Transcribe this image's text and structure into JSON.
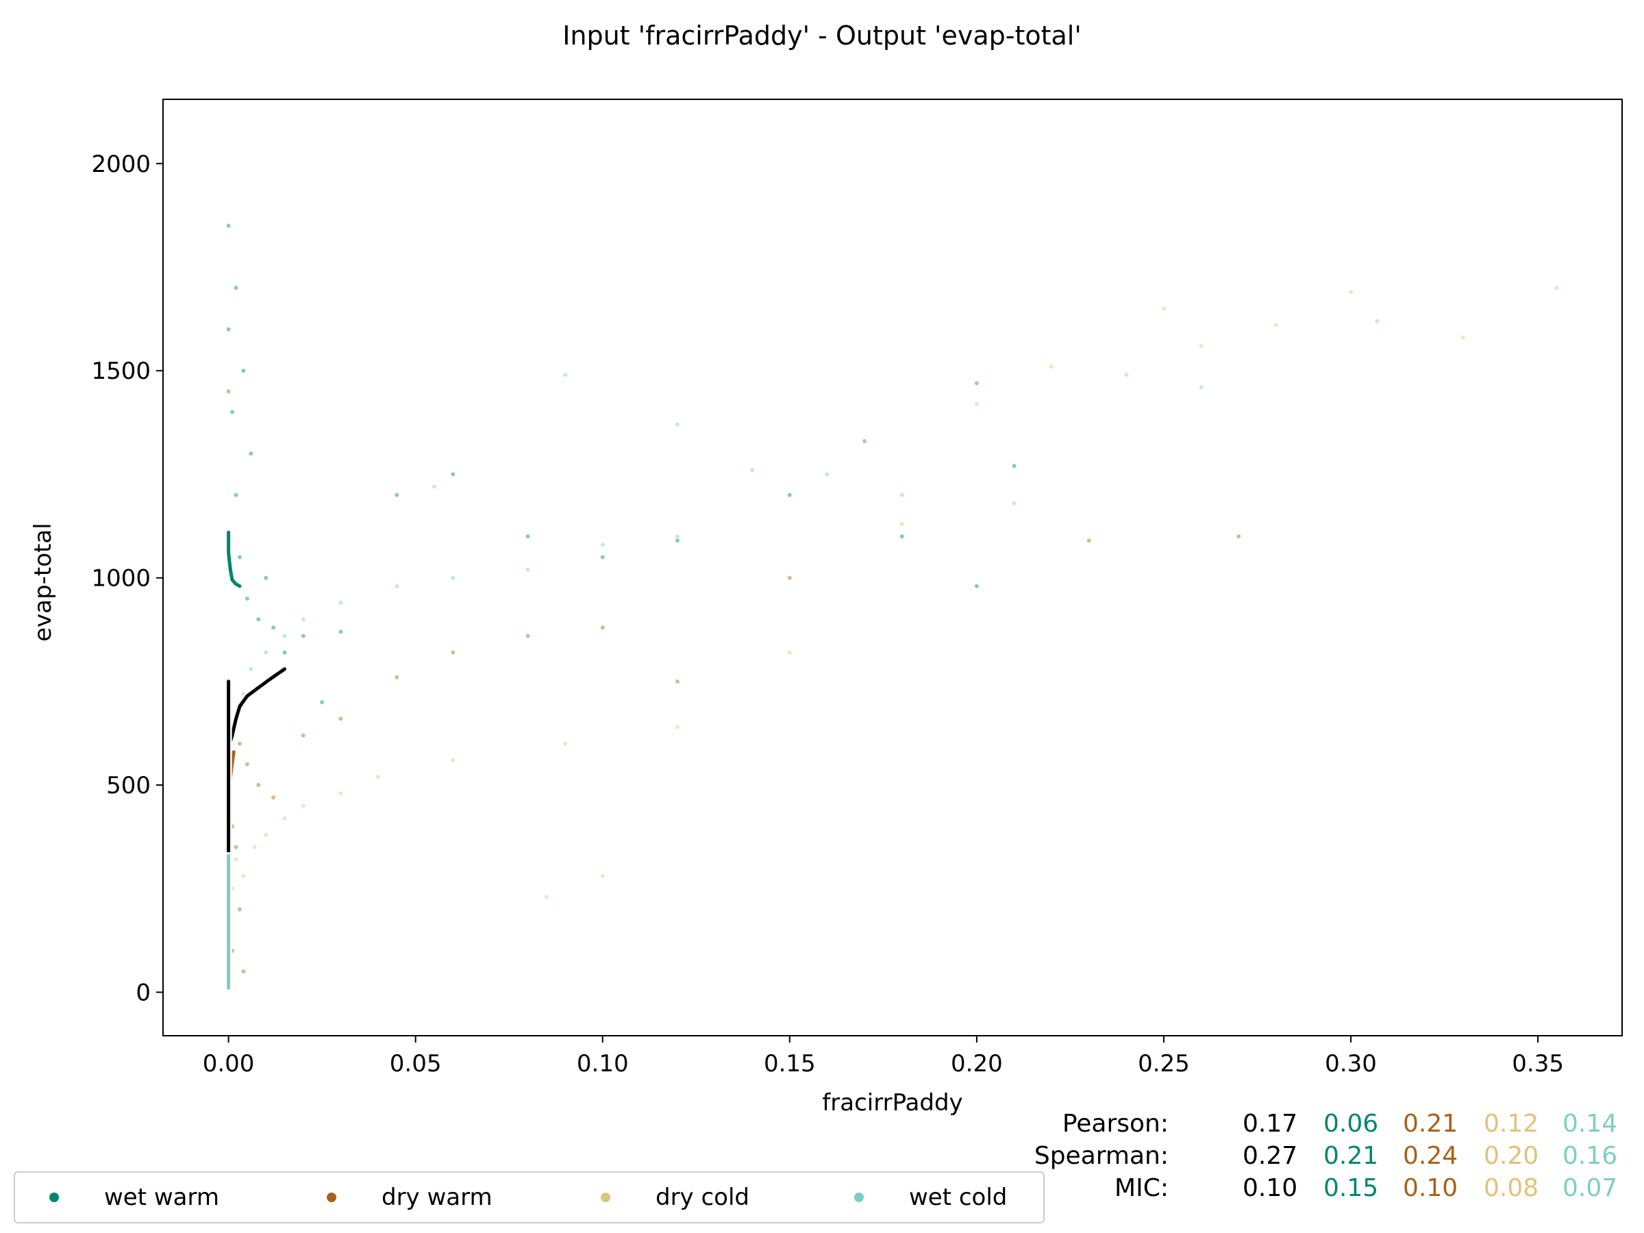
{
  "title": "Input 'fracirrPaddy' - Output 'evap-total'",
  "chart_data": {
    "type": "scatter",
    "title": "Input 'fracirrPaddy' - Output 'evap-total'",
    "xlabel": "fracirrPaddy",
    "ylabel": "evap-total",
    "xlim": [
      -0.0175,
      0.3725
    ],
    "ylim": [
      -105,
      2155
    ],
    "xticks": [
      0.0,
      0.05,
      0.1,
      0.15,
      0.2,
      0.25,
      0.3,
      0.35
    ],
    "xtick_labels": [
      "0.00",
      "0.05",
      "0.10",
      "0.15",
      "0.20",
      "0.25",
      "0.30",
      "0.35"
    ],
    "yticks": [
      0,
      500,
      1000,
      1500,
      2000
    ],
    "ytick_labels": [
      "0",
      "500",
      "1000",
      "1500",
      "2000"
    ],
    "grid": false,
    "legend_position": "bottom-left",
    "colors": {
      "all": "#000000",
      "wet warm": "#018571",
      "dry warm": "#a6611a",
      "dry cold": "#dfc27d",
      "wet cold": "#80cdc1"
    },
    "series": [
      {
        "name": "wet warm",
        "color": "#018571",
        "points": [
          [
            0.0,
            1850
          ],
          [
            0.0,
            1600
          ],
          [
            0.001,
            1400
          ],
          [
            0.002,
            1200
          ],
          [
            0.003,
            1050
          ],
          [
            0.005,
            950
          ],
          [
            0.008,
            900
          ],
          [
            0.012,
            880
          ],
          [
            0.02,
            860
          ],
          [
            0.03,
            870
          ],
          [
            0.045,
            1200
          ],
          [
            0.06,
            1250
          ],
          [
            0.08,
            1100
          ],
          [
            0.1,
            1050
          ],
          [
            0.12,
            1090
          ],
          [
            0.15,
            1200
          ],
          [
            0.18,
            1100
          ],
          [
            0.2,
            980
          ],
          [
            0.21,
            1270
          ],
          [
            0.002,
            1700
          ],
          [
            0.004,
            1500
          ],
          [
            0.006,
            1300
          ],
          [
            0.01,
            1000
          ],
          [
            0.015,
            820
          ],
          [
            0.025,
            700
          ]
        ]
      },
      {
        "name": "dry warm",
        "color": "#a6611a",
        "points": [
          [
            0.0,
            1450
          ],
          [
            0.0,
            1100
          ],
          [
            0.0,
            700
          ],
          [
            0.0,
            450
          ],
          [
            0.001,
            400
          ],
          [
            0.002,
            350
          ],
          [
            0.003,
            600
          ],
          [
            0.005,
            550
          ],
          [
            0.008,
            500
          ],
          [
            0.012,
            470
          ],
          [
            0.02,
            620
          ],
          [
            0.03,
            660
          ],
          [
            0.045,
            760
          ],
          [
            0.06,
            820
          ],
          [
            0.08,
            860
          ],
          [
            0.1,
            880
          ],
          [
            0.12,
            750
          ],
          [
            0.15,
            1000
          ],
          [
            0.17,
            1330
          ],
          [
            0.2,
            1470
          ],
          [
            0.23,
            1090
          ],
          [
            0.27,
            1100
          ],
          [
            0.001,
            100
          ],
          [
            0.003,
            200
          ],
          [
            0.004,
            50
          ]
        ]
      },
      {
        "name": "dry cold",
        "color": "#dfc27d",
        "points": [
          [
            0.0,
            300
          ],
          [
            0.001,
            250
          ],
          [
            0.002,
            320
          ],
          [
            0.004,
            280
          ],
          [
            0.007,
            350
          ],
          [
            0.01,
            380
          ],
          [
            0.015,
            420
          ],
          [
            0.02,
            450
          ],
          [
            0.03,
            480
          ],
          [
            0.04,
            520
          ],
          [
            0.06,
            560
          ],
          [
            0.09,
            600
          ],
          [
            0.12,
            640
          ],
          [
            0.15,
            820
          ],
          [
            0.18,
            1130
          ],
          [
            0.2,
            1420
          ],
          [
            0.22,
            1510
          ],
          [
            0.25,
            1650
          ],
          [
            0.26,
            1560
          ],
          [
            0.28,
            1610
          ],
          [
            0.3,
            1690
          ],
          [
            0.33,
            1580
          ],
          [
            0.355,
            1700
          ],
          [
            0.085,
            230
          ],
          [
            0.1,
            280
          ]
        ]
      },
      {
        "name": "wet cold",
        "color": "#80cdc1",
        "points": [
          [
            0.0,
            80
          ],
          [
            0.0,
            150
          ],
          [
            0.001,
            600
          ],
          [
            0.002,
            650
          ],
          [
            0.004,
            720
          ],
          [
            0.006,
            780
          ],
          [
            0.01,
            820
          ],
          [
            0.015,
            860
          ],
          [
            0.02,
            900
          ],
          [
            0.03,
            940
          ],
          [
            0.045,
            980
          ],
          [
            0.06,
            1000
          ],
          [
            0.08,
            1020
          ],
          [
            0.1,
            1080
          ],
          [
            0.12,
            1100
          ],
          [
            0.14,
            1260
          ],
          [
            0.16,
            1250
          ],
          [
            0.18,
            1200
          ],
          [
            0.21,
            1180
          ],
          [
            0.24,
            1490
          ],
          [
            0.26,
            1460
          ],
          [
            0.307,
            1620
          ],
          [
            0.12,
            1370
          ],
          [
            0.09,
            1490
          ],
          [
            0.055,
            1220
          ]
        ]
      }
    ],
    "trend_lines": [
      {
        "name": "wet warm",
        "color": "#018571",
        "points": [
          [
            0.0,
            1110
          ],
          [
            0.0,
            1060
          ],
          [
            0.0005,
            1020
          ],
          [
            0.001,
            995
          ],
          [
            0.002,
            985
          ],
          [
            0.003,
            980
          ]
        ]
      },
      {
        "name": "all",
        "color": "#000000",
        "points": [
          [
            0.0,
            590
          ],
          [
            0.001,
            620
          ],
          [
            0.002,
            660
          ],
          [
            0.003,
            690
          ],
          [
            0.005,
            715
          ],
          [
            0.008,
            735
          ],
          [
            0.011,
            755
          ],
          [
            0.015,
            780
          ]
        ]
      },
      {
        "name": "dry warm",
        "color": "#a6611a",
        "points": [
          [
            0.0,
            380
          ],
          [
            0.0,
            450
          ],
          [
            0.0003,
            500
          ],
          [
            0.0008,
            540
          ],
          [
            0.0014,
            580
          ]
        ]
      },
      {
        "name": "all",
        "color": "#000000",
        "points": [
          [
            0.0,
            140
          ],
          [
            0.0,
            250
          ],
          [
            0.0,
            370
          ],
          [
            0.0,
            470
          ],
          [
            0.0,
            560
          ],
          [
            0.0,
            620
          ],
          [
            0.0,
            700
          ],
          [
            0.0,
            750
          ]
        ]
      },
      {
        "name": "dry cold",
        "color": "#dfc27d",
        "points": [
          [
            0.0,
            200
          ],
          [
            0.0,
            250
          ],
          [
            0.0,
            275
          ]
        ]
      },
      {
        "name": "wet cold",
        "color": "#80cdc1",
        "points": [
          [
            0.0,
            10
          ],
          [
            0.0,
            60
          ],
          [
            0.0,
            120
          ],
          [
            0.0,
            300
          ],
          [
            0.0,
            330
          ]
        ]
      }
    ]
  },
  "legend": {
    "items": [
      {
        "label": "wet warm",
        "color": "#018571"
      },
      {
        "label": "dry warm",
        "color": "#a6611a"
      },
      {
        "label": "dry cold",
        "color": "#dfc27d"
      },
      {
        "label": "wet cold",
        "color": "#80cdc1"
      }
    ]
  },
  "stats": {
    "rows": [
      {
        "label": "Pearson:",
        "values": [
          "0.17",
          "0.06",
          "0.21",
          "0.12",
          "0.14"
        ]
      },
      {
        "label": "Spearman:",
        "values": [
          "0.27",
          "0.21",
          "0.24",
          "0.20",
          "0.16"
        ]
      },
      {
        "label": "MIC:",
        "values": [
          "0.10",
          "0.15",
          "0.10",
          "0.08",
          "0.07"
        ]
      }
    ],
    "colors": [
      "#000000",
      "#018571",
      "#a6611a",
      "#dfc27d",
      "#80cdc1"
    ]
  }
}
